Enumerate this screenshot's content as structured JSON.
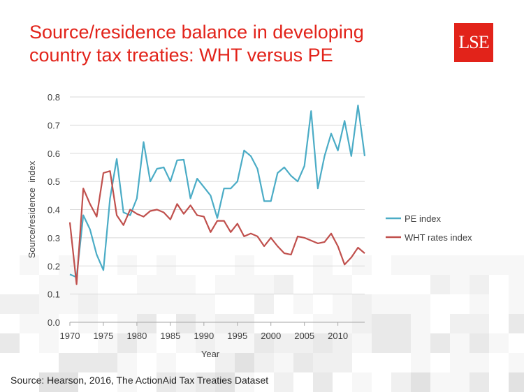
{
  "slide": {
    "title_line1": "Source/residence balance in developing",
    "title_line2": "country tax treaties: WHT versus PE",
    "logo_text": "LSE",
    "source": "Source: Hearson, 2016, The  ActionAid Tax Treaties Dataset"
  },
  "colors": {
    "title": "#e2231a",
    "logo_bg": "#e2231a",
    "pe": "#4bacc6",
    "wht": "#c0504d"
  },
  "chart_data": {
    "type": "line",
    "title": "",
    "xlabel": "Year",
    "ylabel": "Source/residence  index",
    "xlim": [
      1970,
      2014
    ],
    "ylim": [
      0,
      0.8
    ],
    "x_ticks": [
      1970,
      1975,
      1980,
      1985,
      1990,
      1995,
      2000,
      2005,
      2010
    ],
    "y_ticks": [
      "0.0",
      "0.1",
      "0.2",
      "0.3",
      "0.4",
      "0.5",
      "0.6",
      "0.7",
      "0.8"
    ],
    "legend_position": "right",
    "x": [
      1970,
      1971,
      1972,
      1973,
      1974,
      1975,
      1976,
      1977,
      1978,
      1979,
      1980,
      1981,
      1982,
      1983,
      1984,
      1985,
      1986,
      1987,
      1988,
      1989,
      1990,
      1991,
      1992,
      1993,
      1994,
      1995,
      1996,
      1997,
      1998,
      1999,
      2000,
      2001,
      2002,
      2003,
      2004,
      2005,
      2006,
      2007,
      2008,
      2009,
      2010,
      2011,
      2012,
      2013,
      2014
    ],
    "series": [
      {
        "name": "PE index",
        "color": "#4bacc6",
        "values": [
          0.17,
          0.16,
          0.38,
          0.33,
          0.24,
          0.185,
          0.44,
          0.58,
          0.39,
          0.38,
          0.44,
          0.64,
          0.5,
          0.545,
          0.55,
          0.5,
          0.575,
          0.577,
          0.44,
          0.51,
          0.48,
          0.45,
          0.37,
          0.475,
          0.475,
          0.5,
          0.61,
          0.59,
          0.545,
          0.43,
          0.43,
          0.53,
          0.55,
          0.52,
          0.5,
          0.555,
          0.75,
          0.475,
          0.59,
          0.67,
          0.61,
          0.715,
          0.59,
          0.77,
          0.59
        ]
      },
      {
        "name": "WHT rates index",
        "color": "#c0504d",
        "values": [
          0.355,
          0.135,
          0.475,
          0.42,
          0.375,
          0.53,
          0.537,
          0.38,
          0.345,
          0.4,
          0.385,
          0.375,
          0.395,
          0.4,
          0.39,
          0.365,
          0.42,
          0.385,
          0.415,
          0.38,
          0.375,
          0.32,
          0.36,
          0.36,
          0.32,
          0.35,
          0.305,
          0.315,
          0.305,
          0.27,
          0.3,
          0.27,
          0.245,
          0.24,
          0.305,
          0.3,
          0.29,
          0.28,
          0.285,
          0.315,
          0.27,
          0.205,
          0.23,
          0.265,
          0.245
        ]
      }
    ]
  }
}
